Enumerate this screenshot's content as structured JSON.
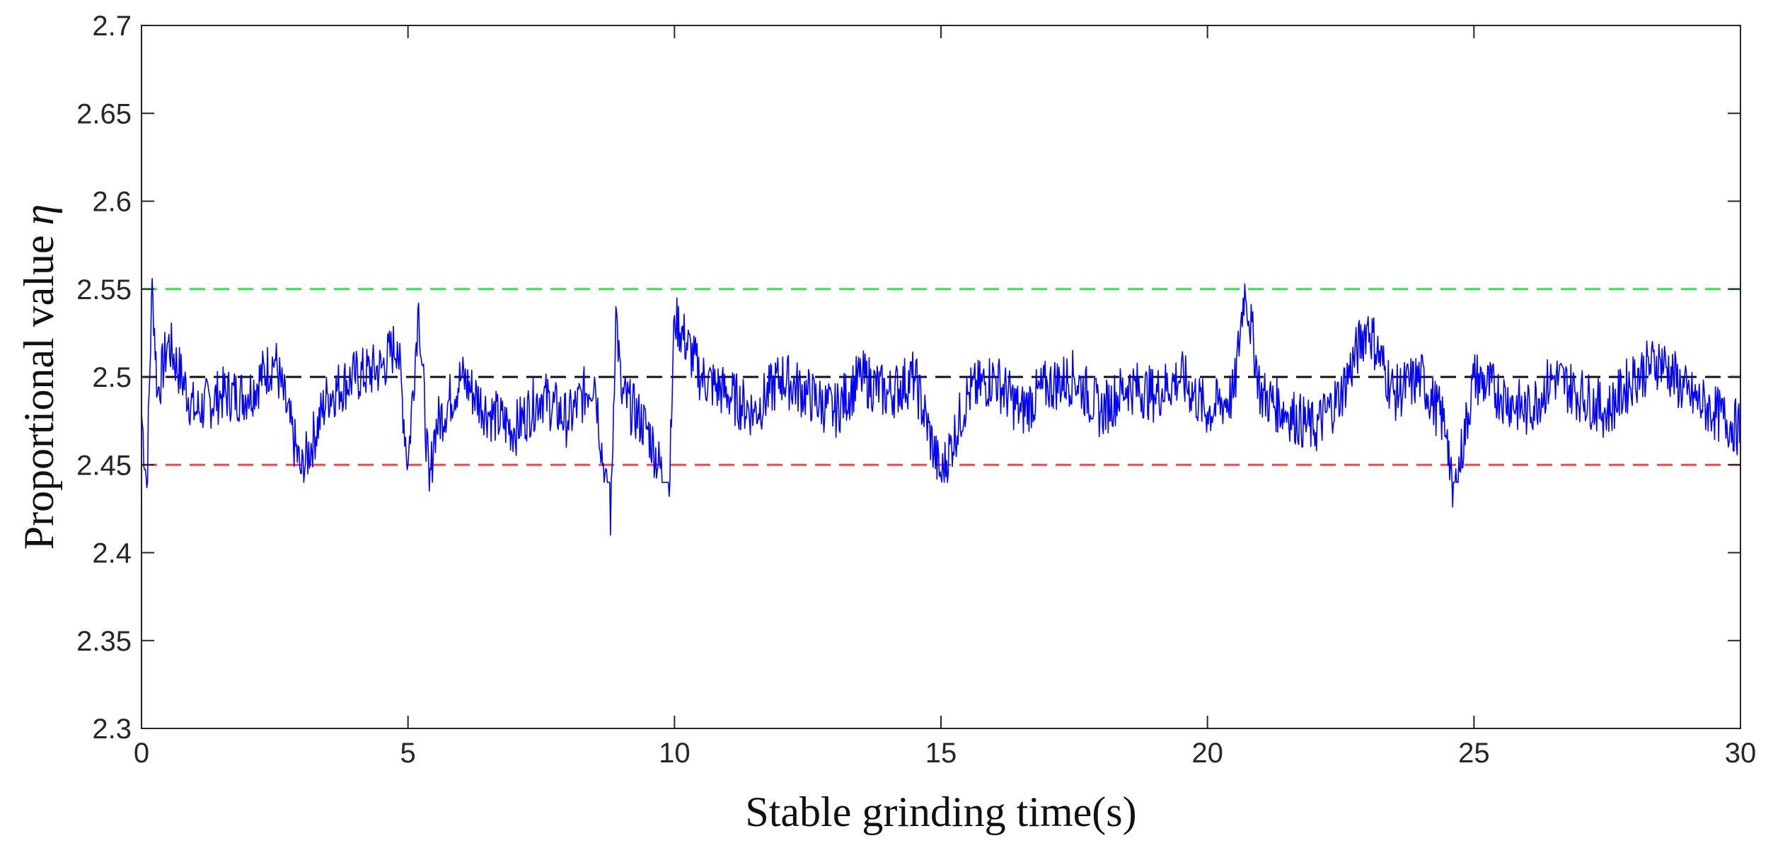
{
  "chart_data": {
    "type": "line",
    "xlabel": "Stable grinding time(s)",
    "ylabel": "Proportional value",
    "ylabel_symbol": "η",
    "xlim": [
      0,
      30
    ],
    "ylim": [
      2.3,
      2.7
    ],
    "x_ticks": [
      0,
      5,
      10,
      15,
      20,
      25,
      30
    ],
    "x_tick_labels": [
      "0",
      "5",
      "10",
      "15",
      "20",
      "25",
      "30"
    ],
    "y_ticks": [
      2.3,
      2.35,
      2.4,
      2.45,
      2.5,
      2.55,
      2.6,
      2.65,
      2.7
    ],
    "y_tick_labels": [
      "2.3",
      "2.35",
      "2.4",
      "2.45",
      "2.5",
      "2.55",
      "2.6",
      "2.65",
      "2.7"
    ],
    "grid": false,
    "box": true,
    "reference_lines": [
      {
        "y": 2.55,
        "color": "#22ee44",
        "style": "dashed",
        "role": "upper-limit"
      },
      {
        "y": 2.5,
        "color": "#111111",
        "style": "dashed",
        "role": "target"
      },
      {
        "y": 2.45,
        "color": "#ff4444",
        "style": "dashed",
        "role": "lower-limit"
      }
    ],
    "series": [
      {
        "color": "#0000ff",
        "x": [
          0,
          0.1,
          0.2,
          0.3,
          0.5,
          1.0,
          1.5,
          2.0,
          2.5,
          3.0,
          3.5,
          4.0,
          4.5,
          4.8,
          5.0,
          5.2,
          5.4,
          5.5,
          6.0,
          6.5,
          7.0,
          7.5,
          8.0,
          8.5,
          8.8,
          8.9,
          9.0,
          9.5,
          9.9,
          10.0,
          10.5,
          11.0,
          11.5,
          12.0,
          12.5,
          13.0,
          13.5,
          14.0,
          14.5,
          15.0,
          15.5,
          16.0,
          16.5,
          17.0,
          17.5,
          18.0,
          18.5,
          19.0,
          19.5,
          20.0,
          20.5,
          20.7,
          21.0,
          21.5,
          22.0,
          22.5,
          23.0,
          23.5,
          24.0,
          24.5,
          24.6,
          25.0,
          25.5,
          26.0,
          26.5,
          27.0,
          27.5,
          28.0,
          28.5,
          29.0,
          29.5,
          30.0
        ],
        "y": [
          2.48,
          2.437,
          2.556,
          2.49,
          2.52,
          2.48,
          2.49,
          2.49,
          2.51,
          2.445,
          2.49,
          2.5,
          2.505,
          2.52,
          2.45,
          2.542,
          2.435,
          2.47,
          2.5,
          2.48,
          2.47,
          2.49,
          2.475,
          2.5,
          2.41,
          2.54,
          2.49,
          2.47,
          2.432,
          2.535,
          2.5,
          2.49,
          2.48,
          2.5,
          2.49,
          2.48,
          2.5,
          2.49,
          2.5,
          2.443,
          2.49,
          2.5,
          2.48,
          2.495,
          2.5,
          2.48,
          2.495,
          2.49,
          2.5,
          2.48,
          2.49,
          2.553,
          2.49,
          2.48,
          2.47,
          2.49,
          2.53,
          2.49,
          2.5,
          2.47,
          2.426,
          2.5,
          2.49,
          2.48,
          2.5,
          2.49,
          2.48,
          2.5,
          2.51,
          2.49,
          2.48,
          2.47
        ]
      }
    ]
  }
}
